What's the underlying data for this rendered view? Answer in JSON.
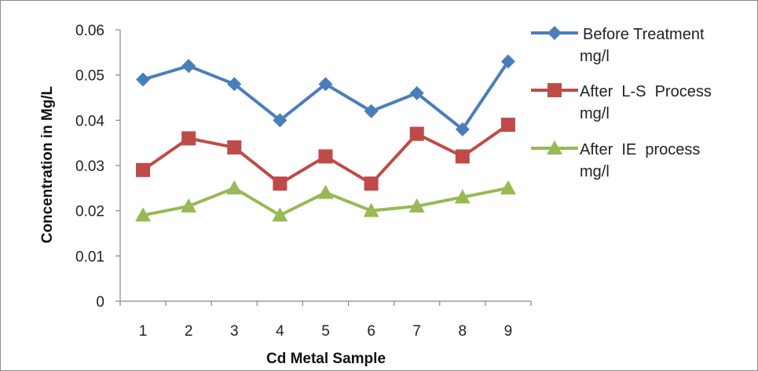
{
  "chart_data": {
    "type": "line",
    "categories": [
      "1",
      "2",
      "3",
      "4",
      "5",
      "6",
      "7",
      "8",
      "9"
    ],
    "xlabel": "Cd Metal Sample",
    "ylabel": "Concentration in Mg/L",
    "ylim": [
      0,
      0.06
    ],
    "yticks": [
      "0",
      "0.01",
      "0.02",
      "0.03",
      "0.04",
      "0.05",
      "0.06"
    ],
    "grid": false,
    "legend_position": "right",
    "series": [
      {
        "name": "Before Treatment mg/l",
        "legend_lines": [
          "Before Treatment",
          "mg/l"
        ],
        "color": "#4a7ebb",
        "marker": "diamond",
        "values": [
          0.049,
          0.052,
          0.048,
          0.04,
          0.048,
          0.042,
          0.046,
          0.038,
          0.053
        ]
      },
      {
        "name": "After L-S Process mg/l",
        "legend_lines": [
          "After  L-S  Process",
          "mg/l"
        ],
        "color": "#be4b48",
        "marker": "square",
        "values": [
          0.029,
          0.036,
          0.034,
          0.026,
          0.032,
          0.026,
          0.037,
          0.032,
          0.039
        ]
      },
      {
        "name": "After IE process mg/l",
        "legend_lines": [
          "After  IE  process",
          "mg/l"
        ],
        "color": "#98b954",
        "marker": "triangle",
        "values": [
          0.019,
          0.021,
          0.025,
          0.019,
          0.024,
          0.02,
          0.021,
          0.023,
          0.025
        ]
      }
    ]
  }
}
